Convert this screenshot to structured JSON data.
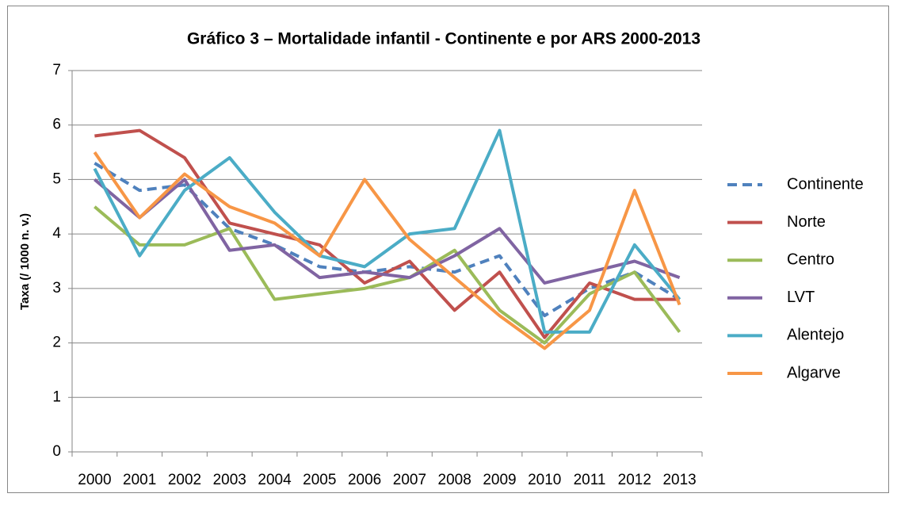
{
  "chart_data": {
    "type": "line",
    "title": "Gráfico 3 – Mortalidade infantil - Continente e por ARS 2000-2013",
    "y_label": "Taxa (/ 1000 n. v.)",
    "categories": [
      "2000",
      "2001",
      "2002",
      "2003",
      "2004",
      "2005",
      "2006",
      "2007",
      "2008",
      "2009",
      "2010",
      "2011",
      "2012",
      "2013"
    ],
    "series": [
      {
        "name": "Continente",
        "color": "#4f81bd",
        "dashed": true,
        "values": [
          5.3,
          4.8,
          4.9,
          4.1,
          3.8,
          3.4,
          3.3,
          3.4,
          3.3,
          3.6,
          2.5,
          3.0,
          3.3,
          2.8
        ]
      },
      {
        "name": "Norte",
        "color": "#c0504d",
        "values": [
          5.8,
          5.9,
          5.4,
          4.2,
          4.0,
          3.8,
          3.1,
          3.5,
          2.6,
          3.3,
          2.1,
          3.1,
          2.8,
          2.8
        ]
      },
      {
        "name": "Centro",
        "color": "#9bbb59",
        "values": [
          4.5,
          3.8,
          3.8,
          4.1,
          2.8,
          2.9,
          3.0,
          3.2,
          3.7,
          2.6,
          2.0,
          2.9,
          3.3,
          2.2
        ]
      },
      {
        "name": "LVT",
        "color": "#8064a2",
        "values": [
          5.0,
          4.3,
          5.0,
          3.7,
          3.8,
          3.2,
          3.3,
          3.2,
          3.6,
          4.1,
          3.1,
          3.3,
          3.5,
          3.2
        ]
      },
      {
        "name": "Alentejo",
        "color": "#4bacc6",
        "values": [
          5.2,
          3.6,
          4.8,
          5.4,
          4.4,
          3.6,
          3.4,
          4.0,
          4.1,
          5.9,
          2.2,
          2.2,
          3.8,
          2.8
        ]
      },
      {
        "name": "Algarve",
        "color": "#f79646",
        "values": [
          5.5,
          4.3,
          5.1,
          4.5,
          4.2,
          3.6,
          5.0,
          3.9,
          3.2,
          2.5,
          1.9,
          2.6,
          4.8,
          2.7
        ]
      }
    ],
    "ylim": [
      0,
      7
    ],
    "yticks": [
      0,
      1,
      2,
      3,
      4,
      5,
      6,
      7
    ],
    "grid": true,
    "legend": "right"
  }
}
